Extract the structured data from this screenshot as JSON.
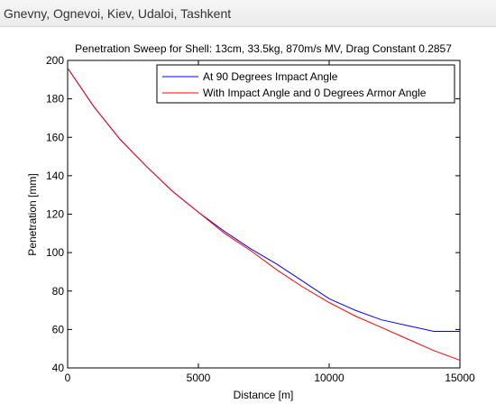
{
  "page": {
    "header_title": "Gnevny, Ognevoi, Kiev, Udaloi, Tashkent"
  },
  "colors": {
    "series_1": "#0000ff",
    "series_2": "#ff0000",
    "axes": "#000000",
    "header_bg": "#f0f0f0"
  },
  "chart_data": {
    "type": "line",
    "title": "Penetration Sweep for Shell: 13cm, 33.5kg, 870m/s MV, Drag Constant 0.2857",
    "xlabel": "Distance [m]",
    "ylabel": "Penetration [mm]",
    "xlim": [
      0,
      15000
    ],
    "ylim": [
      40,
      200
    ],
    "xticks": [
      0,
      5000,
      10000,
      15000
    ],
    "yticks": [
      40,
      60,
      80,
      100,
      120,
      140,
      160,
      180,
      200
    ],
    "grid": false,
    "legend_position": "top-right",
    "series": [
      {
        "name": "At 90 Degrees Impact Angle",
        "color": "#0000ff",
        "x": [
          0,
          1000,
          2000,
          3000,
          4000,
          5000,
          6000,
          7000,
          8000,
          9000,
          10000,
          11000,
          12000,
          13000,
          14000,
          15000
        ],
        "y": [
          196,
          176,
          159,
          145,
          132,
          121,
          111,
          102,
          94,
          85,
          76,
          70,
          65,
          62,
          59,
          59
        ]
      },
      {
        "name": "With Impact Angle and 0 Degrees Armor Angle",
        "color": "#ff0000",
        "x": [
          0,
          1000,
          2000,
          3000,
          4000,
          5000,
          6000,
          7000,
          8000,
          9000,
          10000,
          11000,
          12000,
          13000,
          14000,
          15000
        ],
        "y": [
          196,
          176,
          159,
          145,
          132,
          121,
          110,
          101,
          91,
          82,
          74,
          67,
          61,
          55,
          49,
          44
        ]
      }
    ]
  }
}
